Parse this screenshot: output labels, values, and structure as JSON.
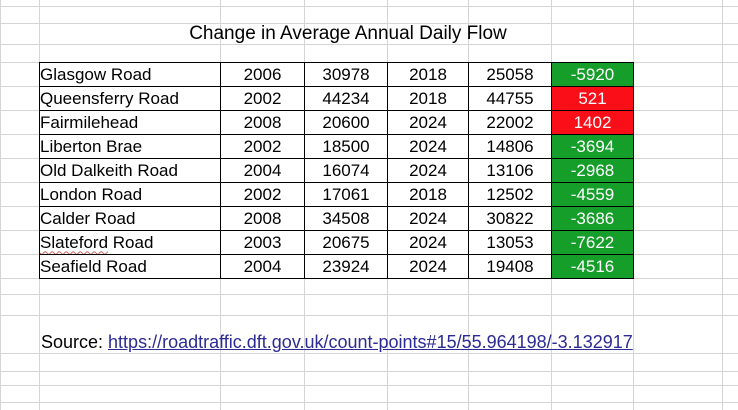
{
  "sheet": {
    "title": "Change in Average Annual Daily Flow",
    "table": {
      "rows": [
        {
          "name": "Glasgow Road",
          "year1": "2006",
          "flow1": "30978",
          "year2": "2018",
          "flow2": "25058",
          "change": "-5920",
          "direction": "decrease"
        },
        {
          "name": "Queensferry Road",
          "year1": "2002",
          "flow1": "44234",
          "year2": "2018",
          "flow2": "44755",
          "change": "521",
          "direction": "increase"
        },
        {
          "name": "Fairmilehead",
          "year1": "2008",
          "flow1": "20600",
          "year2": "2024",
          "flow2": "22002",
          "change": "1402",
          "direction": "increase"
        },
        {
          "name": "Liberton Brae",
          "year1": "2002",
          "flow1": "18500",
          "year2": "2024",
          "flow2": "14806",
          "change": "-3694",
          "direction": "decrease"
        },
        {
          "name": "Old Dalkeith Road",
          "year1": "2004",
          "flow1": "16074",
          "year2": "2024",
          "flow2": "13106",
          "change": "-2968",
          "direction": "decrease"
        },
        {
          "name": "London Road",
          "year1": "2002",
          "flow1": "17061",
          "year2": "2018",
          "flow2": "12502",
          "change": "-4559",
          "direction": "decrease"
        },
        {
          "name": "Calder Road",
          "year1": "2008",
          "flow1": "34508",
          "year2": "2024",
          "flow2": "30822",
          "change": "-3686",
          "direction": "decrease"
        },
        {
          "name_spellcheck": "Slateford",
          "name_rest": " Road",
          "year1": "2003",
          "flow1": "20675",
          "year2": "2024",
          "flow2": "13053",
          "change": "-7622",
          "direction": "decrease"
        },
        {
          "name": "Seafield Road",
          "year1": "2004",
          "flow1": "23924",
          "year2": "2024",
          "flow2": "19408",
          "change": "-4516",
          "direction": "decrease"
        }
      ]
    },
    "source": {
      "label": "Source: ",
      "link": "https://roadtraffic.dft.gov.uk/count-points#15/55.964198/-3.132917"
    },
    "colors": {
      "decrease_bg": "#169e2b",
      "increase_bg": "#fa0f19",
      "change_text": "#ffffff",
      "link_text": "#2b2b96",
      "gridline": "#d5d5d5",
      "cell_border": "#000000"
    }
  }
}
